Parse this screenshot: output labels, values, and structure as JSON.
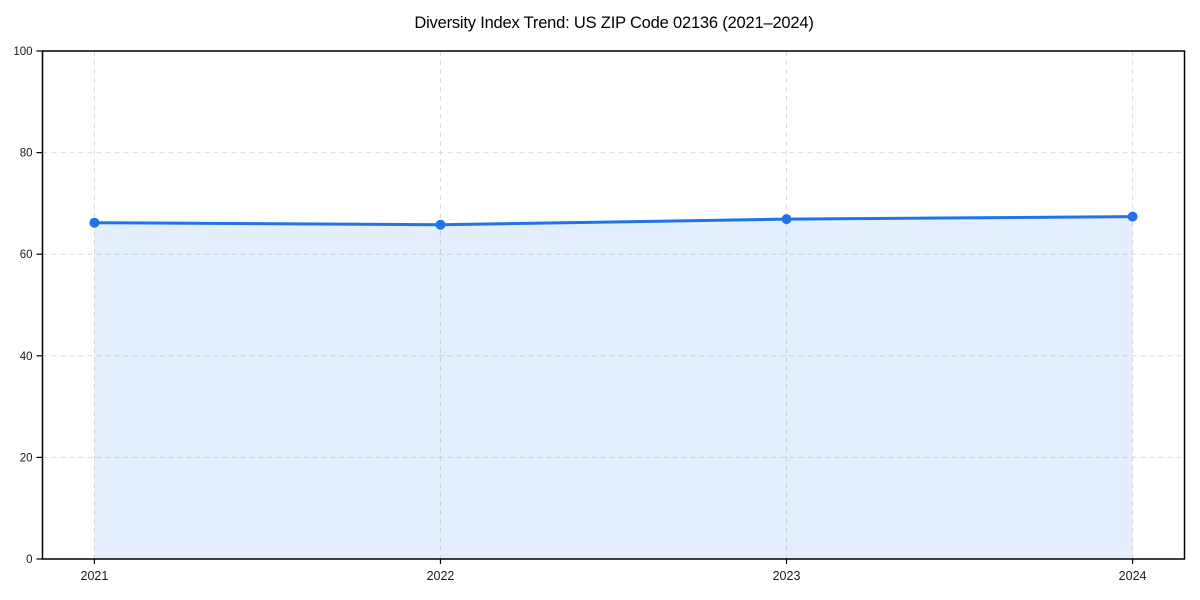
{
  "chart_data": {
    "type": "area",
    "title": "Diversity Index Trend: US ZIP Code 02136 (2021–2024)",
    "categories": [
      "2021",
      "2022",
      "2023",
      "2024"
    ],
    "x": [
      2021,
      2022,
      2023,
      2024
    ],
    "series": [
      {
        "name": "Diversity Index",
        "values": [
          66.2,
          65.8,
          66.9,
          67.4
        ]
      }
    ],
    "xlabel": "",
    "ylabel": "",
    "xlim": [
      2020.85,
      2024.15
    ],
    "ylim": [
      0,
      100
    ],
    "xticks": [
      2021,
      2022,
      2023,
      2024
    ],
    "yticks": [
      0,
      20,
      40,
      60,
      80,
      100
    ],
    "grid": "dashed-both-axes",
    "legend": "none",
    "marker": "circle",
    "colors": {
      "line": "#2273e6",
      "fill": "#2273e6",
      "fill_opacity": 0.12,
      "grid": "#dcdcdc",
      "spine": "#000000",
      "tick": "#000000",
      "tick_label": "#1a1a1a",
      "title": "#000000",
      "background": "#ffffff"
    }
  }
}
